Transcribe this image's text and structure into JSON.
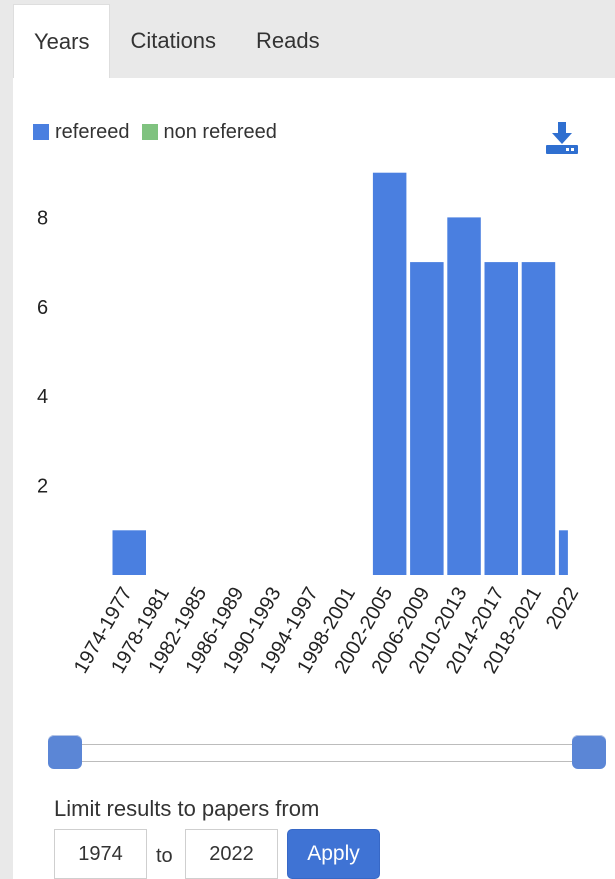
{
  "tabs": [
    {
      "label": "Years",
      "active": true
    },
    {
      "label": "Citations",
      "active": false
    },
    {
      "label": "Reads",
      "active": false
    }
  ],
  "legend": {
    "refereed": {
      "label": "refereed",
      "color": "#4a7fe0"
    },
    "non_refereed": {
      "label": "non refereed",
      "color": "#7fc27f"
    }
  },
  "download_icon": "download-icon",
  "chart_data": {
    "type": "bar",
    "categories": [
      "1974-1977",
      "1978-1981",
      "1982-1985",
      "1986-1989",
      "1990-1993",
      "1994-1997",
      "1998-2001",
      "2002-2005",
      "2006-2009",
      "2010-2013",
      "2014-2017",
      "2018-2021",
      "2022"
    ],
    "series": [
      {
        "name": "refereed",
        "values": [
          1,
          0,
          0,
          0,
          0,
          0,
          0,
          9,
          7,
          8,
          7,
          7,
          1
        ]
      },
      {
        "name": "non refereed",
        "values": [
          0,
          0,
          0,
          0,
          0,
          0,
          0,
          0,
          0,
          0,
          0,
          0,
          0
        ]
      }
    ],
    "yticks": [
      2,
      4,
      6,
      8
    ],
    "ylim": [
      0,
      9.1
    ],
    "bar_color": "#4a7fe0",
    "xlabel": "",
    "ylabel": "",
    "grid": false
  },
  "slider": {
    "min_year": "1974",
    "max_year": "2022"
  },
  "limit": {
    "label": "Limit results to papers from",
    "from": "1974",
    "to_label": "to",
    "to": "2022",
    "apply_label": "Apply"
  }
}
